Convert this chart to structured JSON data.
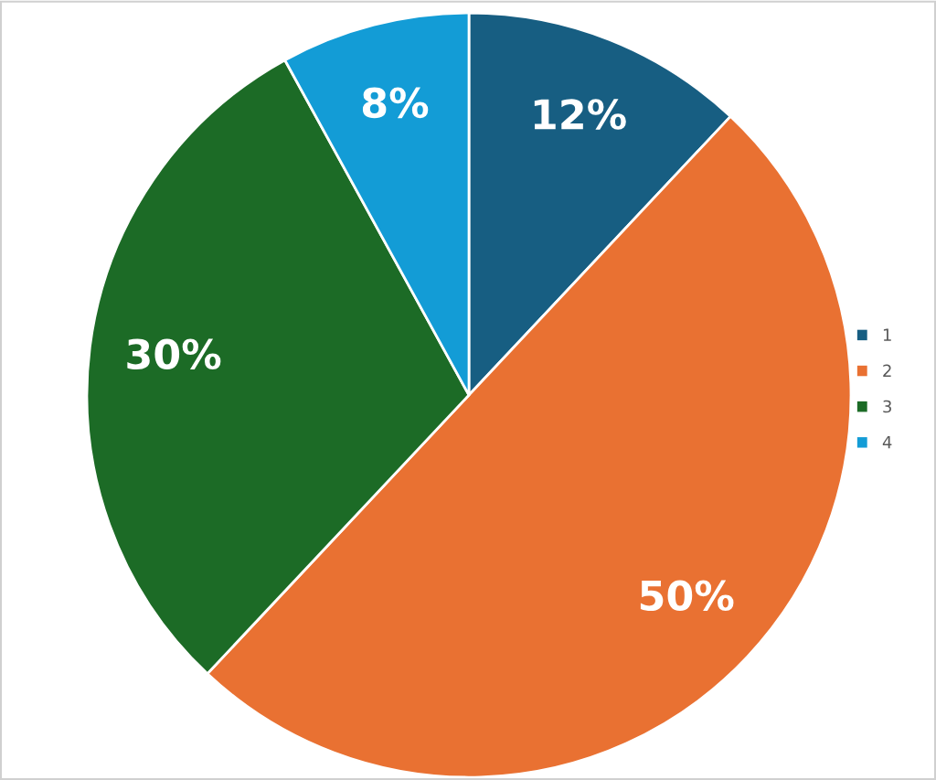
{
  "chart_data": {
    "type": "pie",
    "categories": [
      "1",
      "2",
      "3",
      "4"
    ],
    "values": [
      12,
      50,
      30,
      8
    ],
    "colors": [
      "#175e82",
      "#e97132",
      "#1c6b26",
      "#139cd6"
    ],
    "value_labels": [
      "12%",
      "50%",
      "30%",
      "8%"
    ],
    "legend": "right"
  }
}
